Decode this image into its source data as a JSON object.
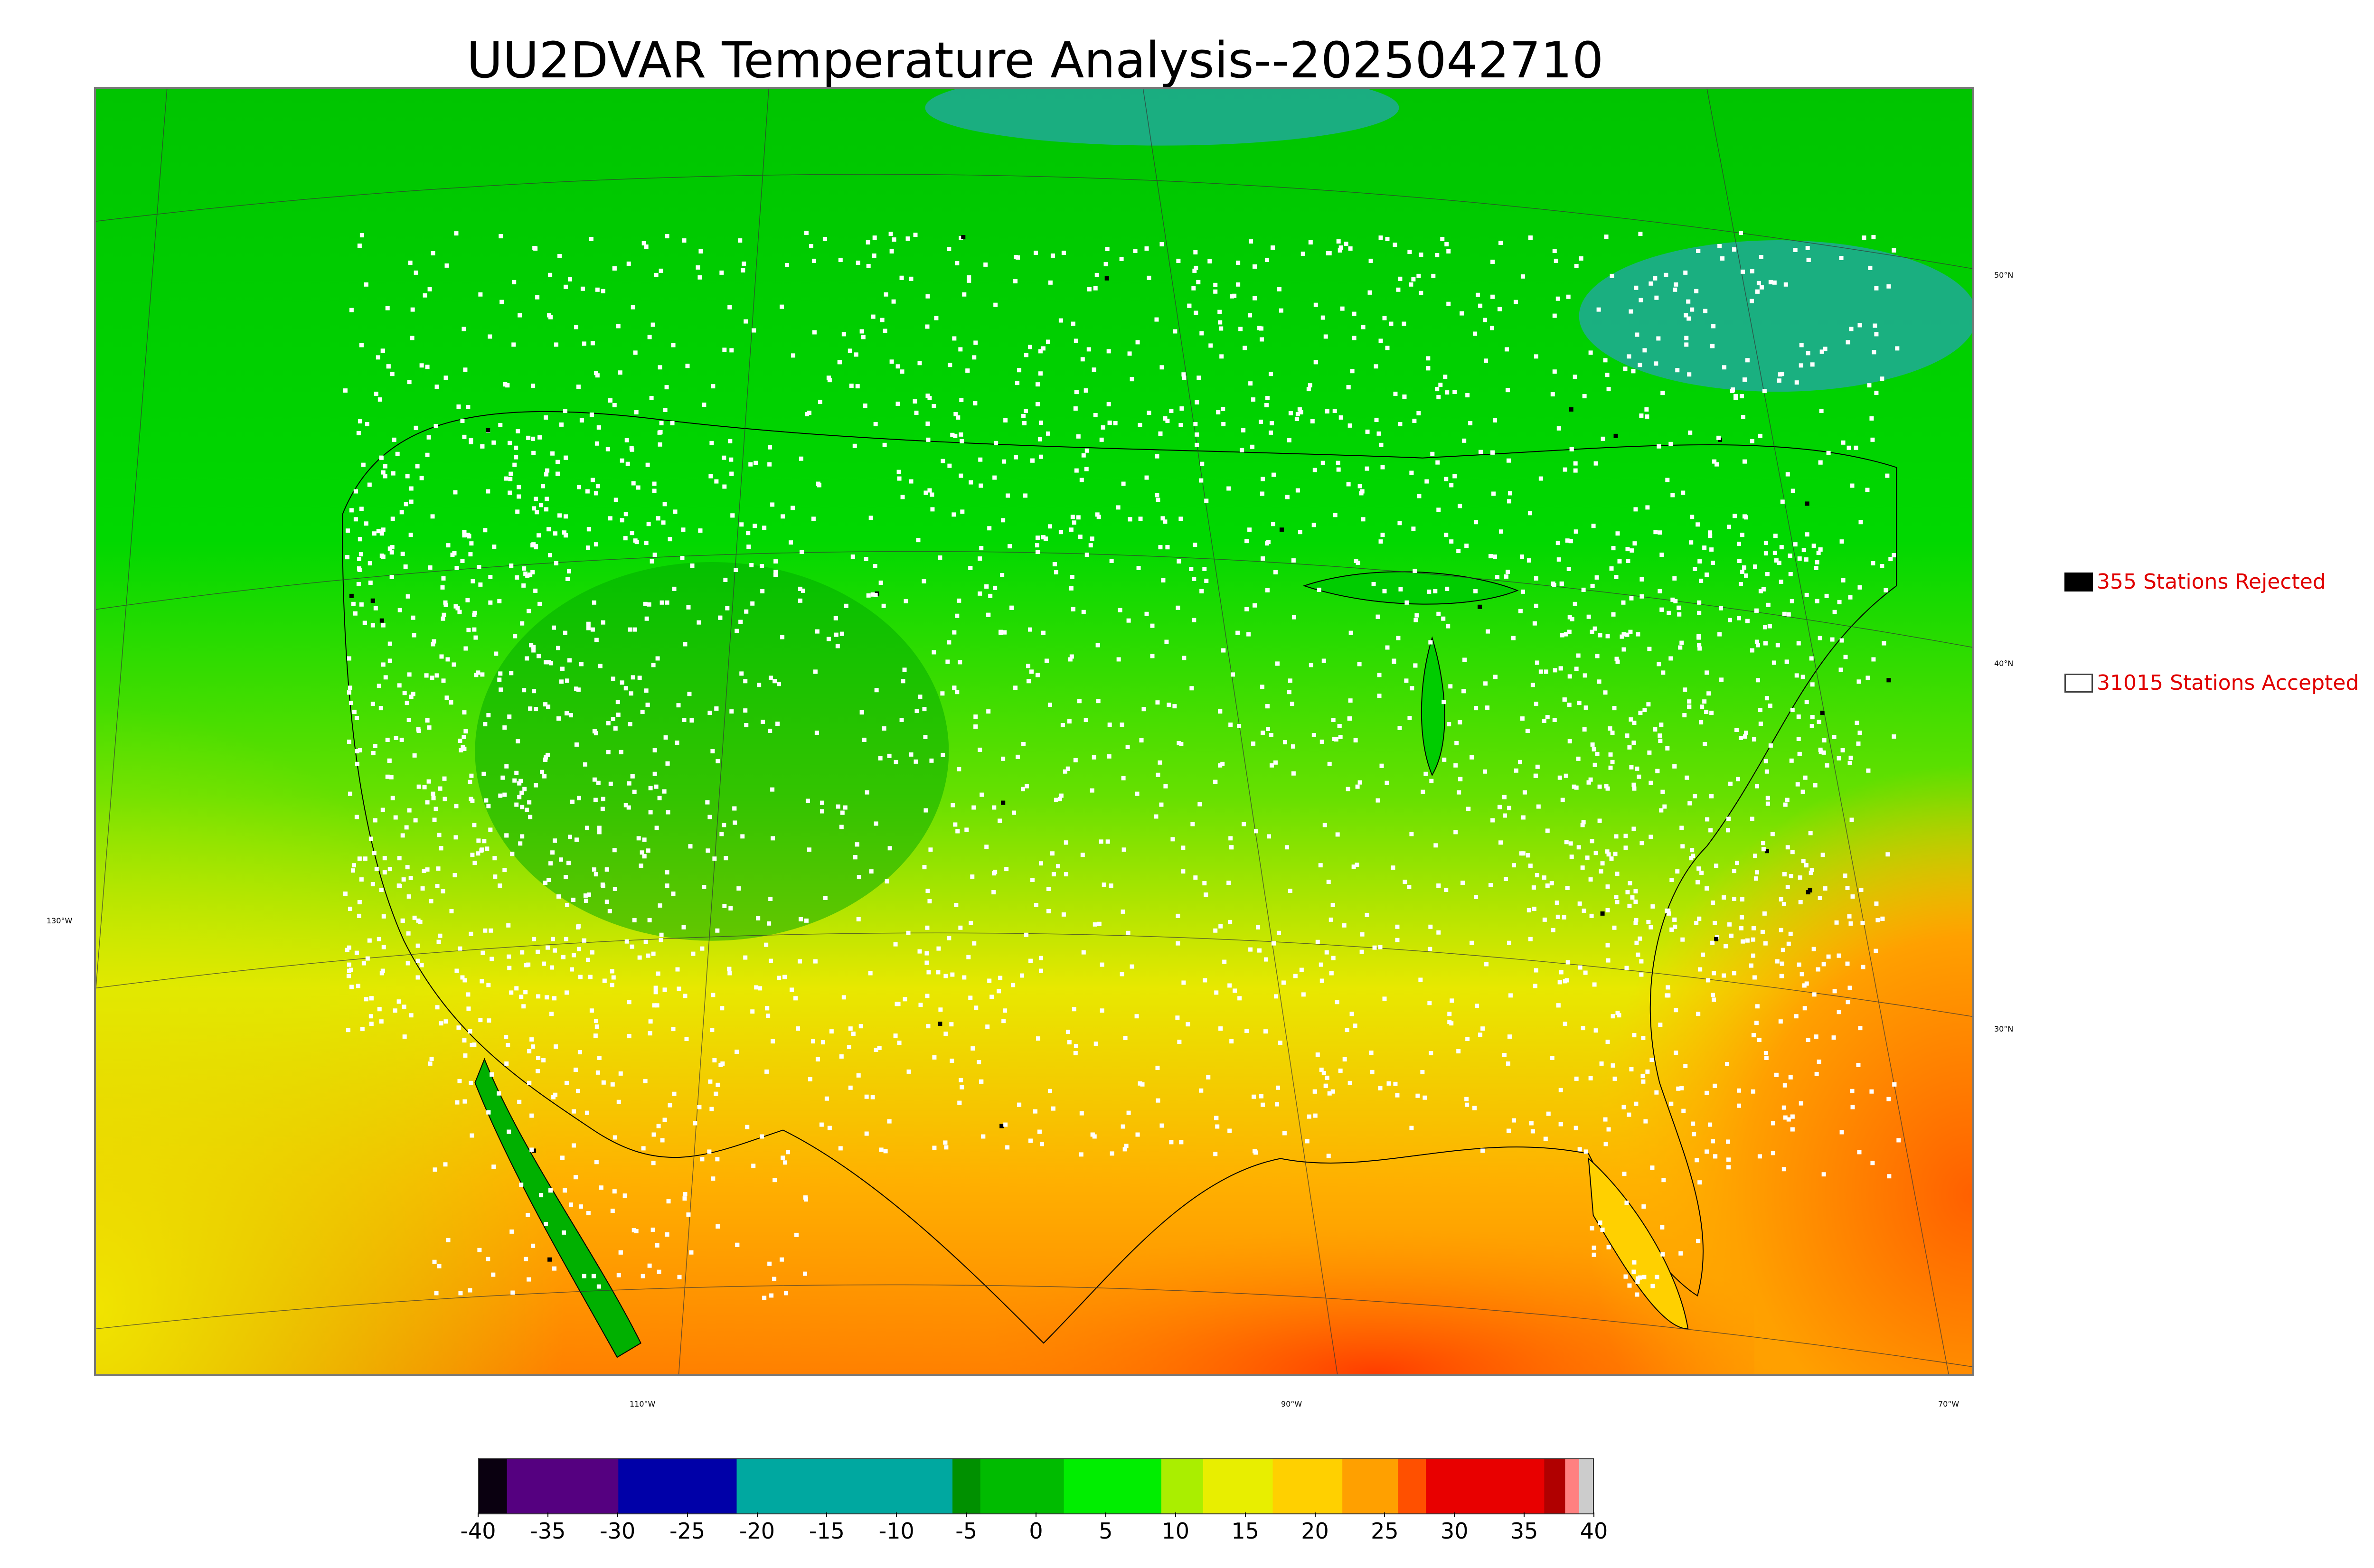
{
  "title": "UU2DVAR Temperature Analysis--2025042710",
  "legend": {
    "rejected": {
      "count": 355,
      "label": "355 Stations Rejected",
      "marker": "black-square"
    },
    "accepted": {
      "count": 31015,
      "label": "31015 Stations Accepted",
      "marker": "white-square"
    }
  },
  "graticule": {
    "latitudes": [
      {
        "label": "50°N"
      },
      {
        "label": "40°N"
      },
      {
        "label": "30°N"
      }
    ],
    "longitudes": [
      {
        "label": "130°W"
      },
      {
        "label": "110°W"
      },
      {
        "label": "90°W"
      },
      {
        "label": "70°W"
      }
    ]
  },
  "colorbar": {
    "min": -40,
    "max": 40,
    "ticks": [
      "-40",
      "-35",
      "-30",
      "-25",
      "-20",
      "-15",
      "-10",
      "-5",
      "0",
      "5",
      "10",
      "15",
      "20",
      "25",
      "30",
      "35",
      "40"
    ],
    "segments": [
      {
        "from": -40,
        "to": -38,
        "color": "#0a0010"
      },
      {
        "from": -38,
        "to": -30,
        "color": "#550080"
      },
      {
        "from": -30,
        "to": -21.5,
        "color": "#0000a8"
      },
      {
        "from": -21.5,
        "to": -6,
        "color": "#00a8a0"
      },
      {
        "from": -6,
        "to": -4,
        "color": "#009000"
      },
      {
        "from": -4,
        "to": 2,
        "color": "#00bb00"
      },
      {
        "from": 2,
        "to": 9,
        "color": "#00ee00"
      },
      {
        "from": 9,
        "to": 12,
        "color": "#aaee00"
      },
      {
        "from": 12,
        "to": 17,
        "color": "#e8ee00"
      },
      {
        "from": 17,
        "to": 22,
        "color": "#ffd000"
      },
      {
        "from": 22,
        "to": 26,
        "color": "#ffa000"
      },
      {
        "from": 26,
        "to": 28,
        "color": "#ff5000"
      },
      {
        "from": 28,
        "to": 36.5,
        "color": "#e80000"
      },
      {
        "from": 36.5,
        "to": 38,
        "color": "#b00000"
      },
      {
        "from": 38,
        "to": 39,
        "color": "#ff8080"
      },
      {
        "from": 39,
        "to": 40,
        "color": "#cccccc"
      }
    ]
  },
  "colors": {
    "cold_green": "#00b400",
    "mild_green": "#00e000",
    "warm_yellow": "#e6ee00",
    "hot_orange": "#ff9a00",
    "very_hot_red": "#ff4500",
    "teal": "#20a8a0"
  }
}
